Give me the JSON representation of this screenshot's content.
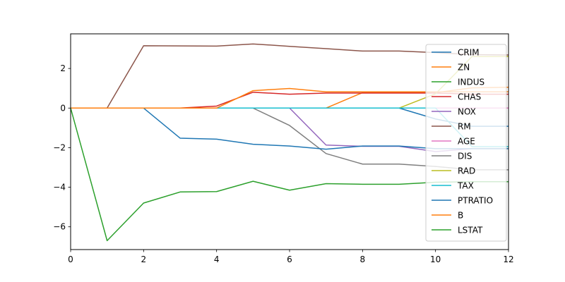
{
  "chart_data": {
    "type": "line",
    "title": "",
    "xlabel": "",
    "ylabel": "",
    "xlim": [
      0,
      12
    ],
    "ylim": [
      -7.15,
      3.75
    ],
    "xticks": [
      0,
      2,
      4,
      6,
      8,
      10,
      12
    ],
    "yticks": [
      -6,
      -4,
      -2,
      0,
      2
    ],
    "grid": false,
    "legend_position": "right",
    "x": [
      0,
      1,
      2,
      3,
      4,
      5,
      6,
      7,
      8,
      9,
      10,
      11,
      12
    ],
    "series": [
      {
        "name": "CRIM",
        "color": "#1f77b4",
        "values": [
          0,
          0,
          0,
          0,
          0,
          0,
          0,
          0,
          0,
          0,
          -0.55,
          -0.92,
          -0.92
        ]
      },
      {
        "name": "ZN",
        "color": "#ff7f0e",
        "values": [
          0,
          0,
          0,
          0,
          0,
          0,
          0,
          0,
          0.78,
          0.78,
          0.78,
          1.02,
          1.05
        ]
      },
      {
        "name": "INDUS",
        "color": "#2ca02c",
        "values": [
          0,
          0,
          0,
          0,
          0,
          0,
          0,
          0,
          0,
          0,
          0,
          0,
          0
        ]
      },
      {
        "name": "CHAS",
        "color": "#d62728",
        "values": [
          0,
          0,
          0,
          0,
          0.1,
          0.8,
          0.7,
          0.76,
          0.76,
          0.76,
          0.76,
          0.7,
          0.7
        ]
      },
      {
        "name": "NOX",
        "color": "#9467bd",
        "values": [
          0,
          0,
          0,
          0,
          0,
          0,
          0,
          -1.87,
          -1.93,
          -1.93,
          -2.2,
          -2.05,
          -2.05
        ]
      },
      {
        "name": "RM",
        "color": "#8c564b",
        "values": [
          0,
          0,
          3.15,
          3.14,
          3.13,
          3.24,
          3.12,
          3.0,
          2.88,
          2.88,
          2.8,
          2.7,
          2.68
        ]
      },
      {
        "name": "AGE",
        "color": "#e377c2",
        "values": [
          0,
          0,
          0,
          0,
          0,
          0,
          0,
          0,
          0,
          0,
          0,
          0,
          0
        ]
      },
      {
        "name": "DIS",
        "color": "#7f7f7f",
        "values": [
          0,
          0,
          0,
          0,
          0,
          0,
          -0.88,
          -2.3,
          -2.83,
          -2.83,
          -2.95,
          -3.12,
          -3.12
        ]
      },
      {
        "name": "RAD",
        "color": "#bcbd22",
        "values": [
          0,
          0,
          0,
          0,
          0,
          0,
          0,
          0,
          0,
          0,
          0.72,
          2.6,
          2.6
        ]
      },
      {
        "name": "TAX",
        "color": "#17becf",
        "values": [
          0,
          0,
          0,
          0,
          0,
          0,
          0,
          0,
          0,
          0,
          0,
          -1.95,
          -1.95
        ]
      },
      {
        "name": "PTRATIO",
        "color": "#1f77b4",
        "values": [
          0,
          0,
          0,
          -1.52,
          -1.57,
          -1.83,
          -1.92,
          -2.08,
          -1.92,
          -1.92,
          -2.05,
          -2.05,
          -2.05
        ]
      },
      {
        "name": "B",
        "color": "#ff7f0e",
        "values": [
          0,
          0,
          0,
          0,
          0,
          0.88,
          0.99,
          0.82,
          0.82,
          0.82,
          0.82,
          0.82,
          0.82
        ]
      },
      {
        "name": "LSTAT",
        "color": "#2ca02c",
        "values": [
          0,
          -6.7,
          -4.8,
          -4.24,
          -4.22,
          -3.7,
          -4.15,
          -3.82,
          -3.85,
          -3.85,
          -3.75,
          -3.72,
          -3.72
        ]
      }
    ]
  }
}
